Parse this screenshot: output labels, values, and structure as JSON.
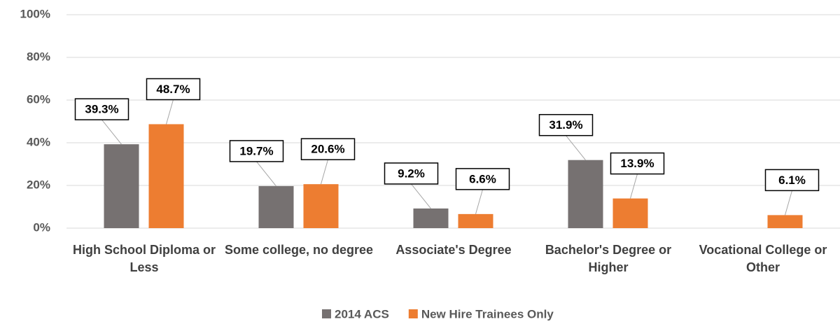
{
  "chart_data": {
    "type": "bar",
    "categories": [
      "High School Diploma or Less",
      "Some college, no degree",
      "Associate's Degree",
      "Bachelor's Degree or Higher",
      "Vocational College or Other"
    ],
    "series": [
      {
        "name": "2014 ACS",
        "color": "#767171",
        "values": [
          39.3,
          19.7,
          9.2,
          31.9,
          null
        ],
        "value_labels": [
          "39.3%",
          "19.7%",
          "9.2%",
          "31.9%",
          null
        ]
      },
      {
        "name": "New Hire Trainees Only",
        "color": "#ed7d31",
        "values": [
          48.7,
          20.6,
          6.6,
          13.9,
          6.1
        ],
        "value_labels": [
          "48.7%",
          "20.6%",
          "6.6%",
          "13.9%",
          "6.1%"
        ]
      }
    ],
    "ylim": [
      0,
      100
    ],
    "yticks": [
      {
        "value": 0,
        "label": "0%"
      },
      {
        "value": 20,
        "label": "20%"
      },
      {
        "value": 40,
        "label": "40%"
      },
      {
        "value": 60,
        "label": "60%"
      },
      {
        "value": 80,
        "label": "80%"
      },
      {
        "value": 100,
        "label": "100%"
      }
    ],
    "grid": true,
    "legend": "bottom"
  }
}
